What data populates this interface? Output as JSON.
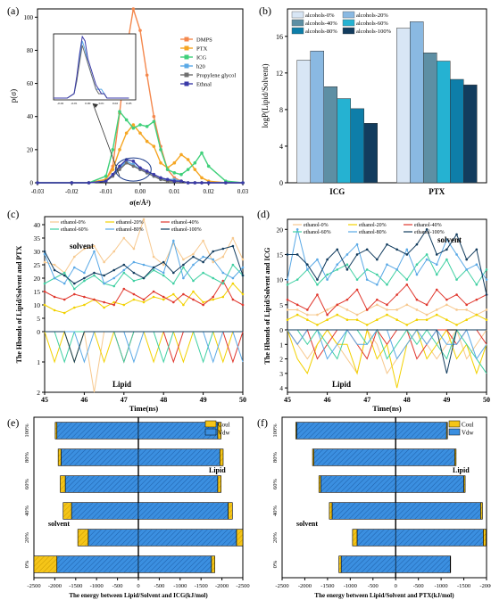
{
  "figure": {
    "panel_labels": [
      "(a)",
      "(b)",
      "(c)",
      "(d)",
      "(e)",
      "(f)"
    ]
  },
  "chart_data": [
    {
      "panel": "(a)",
      "type": "line",
      "xlabel": "σ(e/Å²)",
      "ylabel": "p(σ)",
      "xlim": [
        -0.03,
        0.03
      ],
      "ylim": [
        0,
        105
      ],
      "xticks": [
        "-0.03",
        "-0.02",
        "-0.01",
        "0.00",
        "0.01",
        "0.02",
        "0.03"
      ],
      "yticks": [
        "0",
        "20",
        "40",
        "60",
        "80",
        "100"
      ],
      "legend": [
        "DMPS",
        "PTX",
        "ICG",
        "h20",
        "Propylene glycol",
        "Ethnal"
      ],
      "colors": [
        "#f4884d",
        "#f5a623",
        "#3fd07a",
        "#5aa9e6",
        "#6f6f6f",
        "#3a3aa8"
      ],
      "x": [
        -0.03,
        -0.02,
        -0.015,
        -0.01,
        -0.008,
        -0.006,
        -0.004,
        -0.002,
        0.0,
        0.002,
        0.004,
        0.006,
        0.008,
        0.01,
        0.012,
        0.014,
        0.016,
        0.018,
        0.02,
        0.025,
        0.03
      ],
      "series": [
        {
          "name": "DMPS",
          "values": [
            0,
            0,
            0,
            2,
            10,
            42,
            80,
            105,
            92,
            65,
            40,
            22,
            8,
            3,
            1,
            0,
            0,
            0,
            0,
            0,
            0
          ]
        },
        {
          "name": "PTX",
          "values": [
            0,
            0,
            0,
            2,
            8,
            20,
            30,
            35,
            30,
            25,
            22,
            12,
            9,
            12,
            17,
            14,
            8,
            3,
            1,
            0,
            0
          ]
        },
        {
          "name": "ICG",
          "values": [
            0,
            0,
            0,
            4,
            20,
            43,
            38,
            33,
            35,
            34,
            37,
            20,
            8,
            6,
            5,
            8,
            12,
            18,
            10,
            1,
            0
          ]
        },
        {
          "name": "h20",
          "values": [
            0,
            0,
            0,
            1,
            4,
            9,
            13,
            11,
            8,
            6,
            4,
            2,
            2,
            2,
            1,
            0,
            0,
            0,
            0,
            0,
            0
          ]
        },
        {
          "name": "Propylene glycol",
          "values": [
            0,
            0,
            0,
            1,
            4,
            8,
            12,
            10,
            8,
            6,
            4,
            2,
            1,
            1,
            1,
            0,
            0,
            0,
            0,
            0,
            0
          ]
        },
        {
          "name": "Ethnal",
          "values": [
            0,
            0,
            0,
            1,
            5,
            10,
            14,
            13,
            9,
            7,
            5,
            3,
            2,
            1,
            1,
            0,
            0,
            0,
            0,
            0,
            0
          ]
        }
      ],
      "inset_xticks": [
        "-0.02",
        "-0.01",
        "0.00",
        "0.01",
        "0.02",
        "0.03"
      ]
    },
    {
      "panel": "(b)",
      "type": "bar",
      "ylabel": "logP(Lipid/Solvent)",
      "ylim": [
        0,
        19
      ],
      "yticks": [
        "0",
        "4",
        "8",
        "12",
        "16"
      ],
      "categories": [
        "ICG",
        "PTX"
      ],
      "legend_placement": "top-left",
      "series": [
        {
          "name": "alcohols-0%",
          "color": "#d8e6f5",
          "values": [
            13.4,
            16.9
          ]
        },
        {
          "name": "alcohols-20%",
          "color": "#8ab9e2",
          "values": [
            14.4,
            17.6
          ]
        },
        {
          "name": "alcohols-40%",
          "color": "#5d8fa4",
          "values": [
            10.5,
            14.2
          ]
        },
        {
          "name": "alcohols-60%",
          "color": "#25b2d2",
          "values": [
            9.2,
            13.3
          ]
        },
        {
          "name": "alcohols-80%",
          "color": "#0e7ea9",
          "values": [
            8.1,
            11.3
          ]
        },
        {
          "name": "alcohols-100%",
          "color": "#123c5e",
          "values": [
            6.5,
            10.7
          ]
        }
      ]
    },
    {
      "panel": "(c)",
      "type": "line",
      "xlabel": "Time(ns)",
      "ylabel": "The Hbonds of Lipid/Solvent and PTX",
      "xlim": [
        45,
        50
      ],
      "xticks": [
        "45",
        "46",
        "47",
        "48",
        "49",
        "50"
      ],
      "upper_yticks": [
        "0",
        "5",
        "10",
        "15",
        "20",
        "25",
        "30",
        "35",
        "40"
      ],
      "lower_yticks": [
        "0",
        "1",
        "2"
      ],
      "upper_label": "solvent",
      "lower_label": "Lipid",
      "series_names": [
        "ethanol-0%",
        "ethanol-20%",
        "ethanol-40%",
        "ethanol-60%",
        "ethanol-80%",
        "ethanol-100%"
      ],
      "colors": [
        "#f7c98f",
        "#f2d100",
        "#e0372d",
        "#3fd0a2",
        "#5aa9e6",
        "#123c5e"
      ],
      "x": [
        45.0,
        45.25,
        45.5,
        45.75,
        46.0,
        46.25,
        46.5,
        46.75,
        47.0,
        47.25,
        47.5,
        47.75,
        48.0,
        48.25,
        48.5,
        48.75,
        49.0,
        49.25,
        49.5,
        49.75,
        50.0
      ],
      "upper_values": [
        [
          26,
          25,
          22,
          28,
          31,
          32,
          26,
          30,
          35,
          31,
          42,
          28,
          25,
          33,
          27,
          29,
          34,
          26,
          28,
          35,
          27
        ],
        [
          10,
          8,
          7,
          9,
          10,
          12,
          9,
          11,
          10,
          12,
          11,
          13,
          12,
          14,
          10,
          15,
          11,
          12,
          13,
          18,
          14
        ],
        [
          15,
          13,
          12,
          14,
          13,
          12,
          11,
          10,
          16,
          14,
          12,
          15,
          13,
          11,
          14,
          12,
          10,
          13,
          19,
          12,
          10
        ],
        [
          18,
          20,
          22,
          16,
          19,
          21,
          18,
          17,
          22,
          19,
          20,
          23,
          21,
          18,
          24,
          19,
          22,
          20,
          18,
          25,
          21
        ],
        [
          29,
          20,
          18,
          24,
          22,
          30,
          18,
          20,
          23,
          26,
          25,
          24,
          22,
          34,
          20,
          25,
          28,
          27,
          22,
          20,
          24
        ],
        [
          30,
          23,
          21,
          18,
          20,
          22,
          21,
          23,
          25,
          22,
          20,
          24,
          26,
          22,
          25,
          28,
          26,
          30,
          31,
          32,
          21
        ]
      ],
      "lower_values": [
        [
          0,
          0,
          0,
          0,
          0,
          2,
          0,
          0,
          0,
          0,
          0,
          0,
          0,
          0,
          0,
          0,
          0,
          0,
          0,
          0,
          0
        ],
        [
          0,
          1,
          0,
          1,
          0,
          0,
          1,
          0,
          0,
          0,
          0,
          1,
          0,
          0,
          1,
          0,
          0,
          0,
          1,
          0,
          0
        ],
        [
          0,
          0,
          0,
          0,
          0,
          0,
          0,
          0,
          1,
          0,
          0,
          0,
          0,
          1,
          0,
          0,
          0,
          0,
          0,
          1,
          0
        ],
        [
          0,
          0,
          1,
          0,
          0,
          0,
          0,
          0,
          1,
          0,
          0,
          0,
          1,
          0,
          0,
          0,
          1,
          0,
          0,
          0,
          0
        ],
        [
          0,
          0,
          0,
          0,
          1,
          0,
          0,
          0,
          0,
          1,
          0,
          0,
          0,
          0,
          0,
          0,
          0,
          1,
          0,
          0,
          1
        ],
        [
          0,
          0,
          0,
          1,
          0,
          0,
          0,
          0,
          0,
          0,
          0,
          0,
          0,
          0,
          0,
          0,
          0,
          0,
          0,
          0,
          0
        ]
      ]
    },
    {
      "panel": "(d)",
      "type": "line",
      "xlabel": "Time(ns)",
      "ylabel": "The Hbonds of Lipid/Solvent and ICG",
      "xlim": [
        45,
        50
      ],
      "xticks": [
        "45",
        "46",
        "47",
        "48",
        "49",
        "50"
      ],
      "upper_yticks": [
        "0",
        "5",
        "10",
        "15",
        "20"
      ],
      "lower_yticks": [
        "0",
        "1",
        "2",
        "3",
        "4"
      ],
      "upper_label": "solvent",
      "lower_label": "Lipid",
      "series_names": [
        "ethanol-0%",
        "ethanol-20%",
        "ethanol-40%",
        "ethanol-60%",
        "ethanol-80%",
        "ethanol-100%"
      ],
      "colors": [
        "#f7c98f",
        "#f2d100",
        "#e0372d",
        "#3fd0a2",
        "#5aa9e6",
        "#123c5e"
      ],
      "x": [
        45.0,
        45.25,
        45.5,
        45.75,
        46.0,
        46.25,
        46.5,
        46.75,
        47.0,
        47.25,
        47.5,
        47.75,
        48.0,
        48.25,
        48.5,
        48.75,
        49.0,
        49.25,
        49.5,
        49.75,
        50.0
      ],
      "upper_values": [
        [
          4,
          4,
          3,
          3,
          4,
          5,
          4,
          3,
          4,
          5,
          4,
          4,
          5,
          4,
          3,
          4,
          5,
          4,
          4,
          3,
          4
        ],
        [
          2,
          3,
          2,
          1,
          2,
          3,
          2,
          2,
          1,
          2,
          3,
          2,
          1,
          2,
          2,
          3,
          2,
          1,
          2,
          3,
          2
        ],
        [
          6,
          5,
          4,
          7,
          3,
          5,
          6,
          8,
          4,
          6,
          5,
          7,
          9,
          6,
          5,
          8,
          6,
          7,
          5,
          6,
          7
        ],
        [
          9,
          10,
          12,
          9,
          11,
          12,
          13,
          10,
          12,
          11,
          9,
          12,
          10,
          13,
          15,
          11,
          14,
          10,
          12,
          9,
          12
        ],
        [
          10,
          20,
          12,
          14,
          10,
          13,
          15,
          17,
          10,
          9,
          13,
          12,
          16,
          11,
          14,
          13,
          18,
          15,
          12,
          13,
          10
        ],
        [
          15,
          15,
          13,
          10,
          14,
          16,
          12,
          15,
          16,
          14,
          17,
          16,
          15,
          17,
          20,
          15,
          16,
          19,
          14,
          16,
          7
        ]
      ],
      "lower_values": [
        [
          0,
          1,
          2,
          1,
          0,
          1,
          2,
          3,
          0,
          1,
          3,
          2,
          1,
          0,
          1,
          2,
          1,
          0,
          2,
          1,
          0
        ],
        [
          0,
          2,
          3,
          1,
          0,
          1,
          1,
          3,
          0,
          2,
          1,
          4,
          1,
          0,
          2,
          1,
          0,
          2,
          1,
          3,
          1
        ],
        [
          0,
          1,
          0,
          2,
          1,
          0,
          0,
          1,
          2,
          0,
          1,
          0,
          0,
          2,
          1,
          0,
          0,
          1,
          0,
          0,
          1
        ],
        [
          0,
          0,
          1,
          0,
          1,
          2,
          0,
          0,
          1,
          0,
          2,
          1,
          0,
          1,
          0,
          1,
          2,
          0,
          1,
          2,
          3
        ],
        [
          0,
          1,
          0,
          0,
          2,
          1,
          0,
          1,
          1,
          0,
          0,
          2,
          1,
          0,
          1,
          0,
          1,
          1,
          0,
          2,
          1
        ],
        [
          0,
          0,
          0,
          0,
          0,
          0,
          0,
          0,
          0,
          0,
          0,
          0,
          0,
          0,
          0,
          0,
          3,
          0,
          0,
          0,
          0
        ]
      ]
    },
    {
      "panel": "(e)",
      "type": "bar",
      "orientation": "horizontal-stacked",
      "xlabel": "The energy between Lipid/Solvent and ICG(kJ/mol)",
      "xlim": [
        -2500,
        2500
      ],
      "xticks": [
        "-2500",
        "-2000",
        "-1500",
        "-1000",
        "-500",
        "0",
        "-500",
        "-1000",
        "-1500",
        "-2000",
        "-2500"
      ],
      "categories": [
        "0%",
        "20%",
        "40%",
        "60%",
        "80%",
        "100%"
      ],
      "legend": [
        "Coul",
        "Vdw"
      ],
      "colors": {
        "Coul": "#f5c518",
        "Vdw": "#3b8fe0"
      },
      "side_labels": {
        "left": "solvent",
        "right": "Lipid"
      },
      "solvent_vdw": [
        -1950,
        -1200,
        -1600,
        -1750,
        -1850,
        -1950
      ],
      "solvent_coul": [
        -550,
        -250,
        -200,
        -120,
        -70,
        -40
      ],
      "lipid_vdw": [
        -1750,
        -2350,
        -2150,
        -1900,
        -1950,
        -1900
      ],
      "lipid_coul": [
        -80,
        -150,
        -100,
        -80,
        -80,
        -80
      ]
    },
    {
      "panel": "(f)",
      "type": "bar",
      "orientation": "horizontal-stacked",
      "xlabel": "The energy between Lipid/Solvent and PTX(kJ/mol)",
      "xlim": [
        -2500,
        2000
      ],
      "xticks": [
        "-2500",
        "-2000",
        "-1500",
        "-1000",
        "-500",
        "0",
        "-500",
        "-1000",
        "-1500",
        "-2000"
      ],
      "categories": [
        "0%",
        "20%",
        "40%",
        "60%",
        "80%",
        "100%"
      ],
      "legend": [
        "Coul",
        "Vdw"
      ],
      "colors": {
        "Coul": "#f5c518",
        "Vdw": "#3b8fe0"
      },
      "side_labels": {
        "left": "solvent",
        "right": "Lipid"
      },
      "solvent_vdw": [
        -1200,
        -850,
        -1400,
        -1650,
        -1800,
        -2180
      ],
      "solvent_coul": [
        -50,
        -100,
        -60,
        -40,
        -30,
        -20
      ],
      "lipid_vdw": [
        -1200,
        -1930,
        -1870,
        -1500,
        -1300,
        -1120
      ],
      "lipid_coul": [
        -10,
        -60,
        -40,
        -30,
        -30,
        -20
      ]
    }
  ]
}
